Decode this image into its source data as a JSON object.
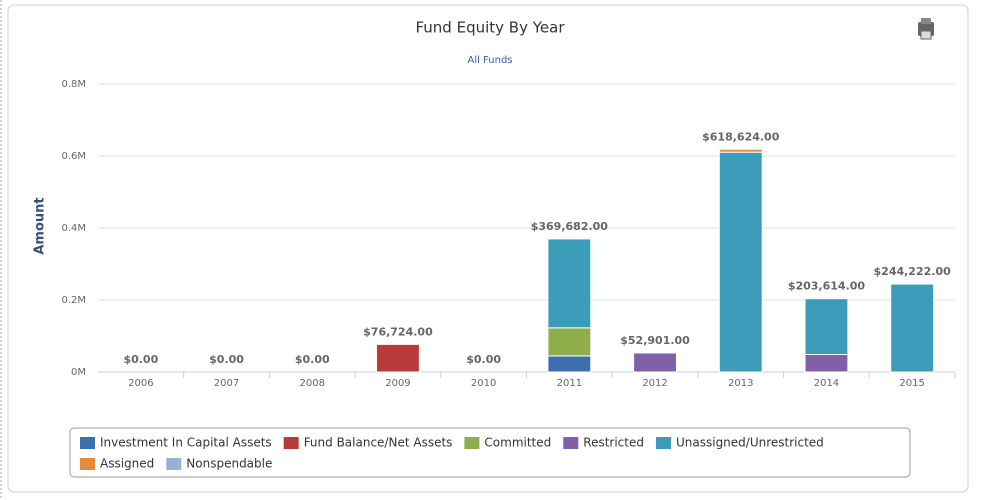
{
  "chart_data": {
    "type": "stacked_bar",
    "title": "Fund Equity By Year",
    "subtitle": "All Funds",
    "y_label": "Amount",
    "categories": [
      "2006",
      "2007",
      "2008",
      "2009",
      "2010",
      "2011",
      "2012",
      "2013",
      "2014",
      "2015"
    ],
    "series": [
      {
        "name": "Investment In Capital Assets",
        "color": "#3d6eb0",
        "values": [
          0,
          0,
          0,
          0,
          0,
          44682,
          0,
          0,
          0,
          0
        ]
      },
      {
        "name": "Fund Balance/Net Assets",
        "color": "#b83a3a",
        "values": [
          0,
          0,
          0,
          76724,
          0,
          0,
          0,
          0,
          0,
          0
        ]
      },
      {
        "name": "Committed",
        "color": "#8fad4b",
        "values": [
          0,
          0,
          0,
          0,
          0,
          78000,
          0,
          0,
          0,
          0
        ]
      },
      {
        "name": "Restricted",
        "color": "#8060a8",
        "values": [
          0,
          0,
          0,
          0,
          0,
          0,
          52901,
          0,
          48614,
          0
        ]
      },
      {
        "name": "Unassigned/Unrestricted",
        "color": "#3a9cb8",
        "values": [
          0,
          0,
          0,
          0,
          0,
          247000,
          0,
          610624,
          155000,
          244222
        ]
      },
      {
        "name": "Assigned",
        "color": "#e8883a",
        "values": [
          0,
          0,
          0,
          0,
          0,
          0,
          0,
          8000,
          0,
          0
        ]
      },
      {
        "name": "Nonspendable",
        "color": "#9ab0d8",
        "values": [
          0,
          0,
          0,
          0,
          0,
          0,
          0,
          0,
          0,
          0
        ]
      }
    ],
    "totals": [
      0,
      0,
      0,
      76724,
      0,
      369682,
      52901,
      618624,
      203614,
      244222
    ],
    "total_labels": [
      "$0.00",
      "$0.00",
      "$0.00",
      "$76,724.00",
      "$0.00",
      "$369,682.00",
      "$52,901.00",
      "$618,624.00",
      "$203,614.00",
      "$244,222.00"
    ],
    "ylim": [
      0,
      800000
    ],
    "yticks": [
      {
        "value": 0,
        "label": "0M"
      },
      {
        "value": 200000,
        "label": "0.2M"
      },
      {
        "value": 400000,
        "label": "0.4M"
      },
      {
        "value": 600000,
        "label": "0.6M"
      },
      {
        "value": 800000,
        "label": "0.8M"
      }
    ],
    "grid": true,
    "legend": "bottom"
  }
}
